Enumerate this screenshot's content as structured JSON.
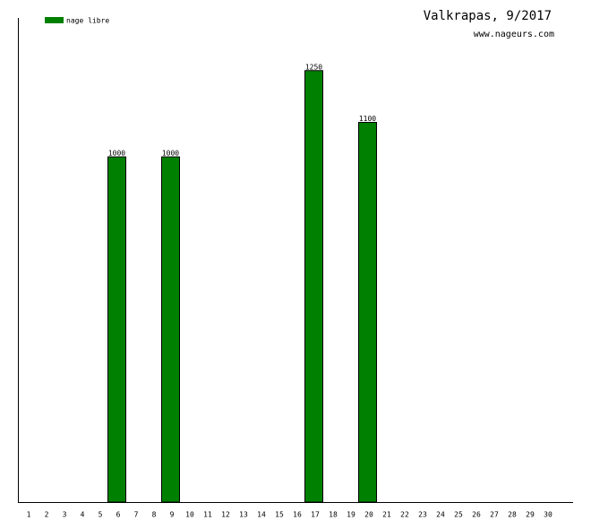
{
  "chart_data": {
    "type": "bar",
    "title": "Valkrapas, 9/2017",
    "subtitle": "www.nageurs.com",
    "categories": [
      "1",
      "2",
      "3",
      "4",
      "5",
      "6",
      "7",
      "8",
      "9",
      "10",
      "11",
      "12",
      "13",
      "14",
      "15",
      "16",
      "17",
      "18",
      "19",
      "20",
      "21",
      "22",
      "23",
      "24",
      "25",
      "26",
      "27",
      "28",
      "29",
      "30"
    ],
    "series": [
      {
        "name": "nage libre",
        "color": "#008000",
        "values": [
          null,
          null,
          null,
          null,
          null,
          1000,
          null,
          null,
          1000,
          null,
          null,
          null,
          null,
          null,
          null,
          null,
          1250,
          null,
          null,
          1100,
          null,
          null,
          null,
          null,
          null,
          null,
          null,
          null,
          null,
          null
        ]
      }
    ],
    "ylim": [
      0,
      1400
    ]
  }
}
